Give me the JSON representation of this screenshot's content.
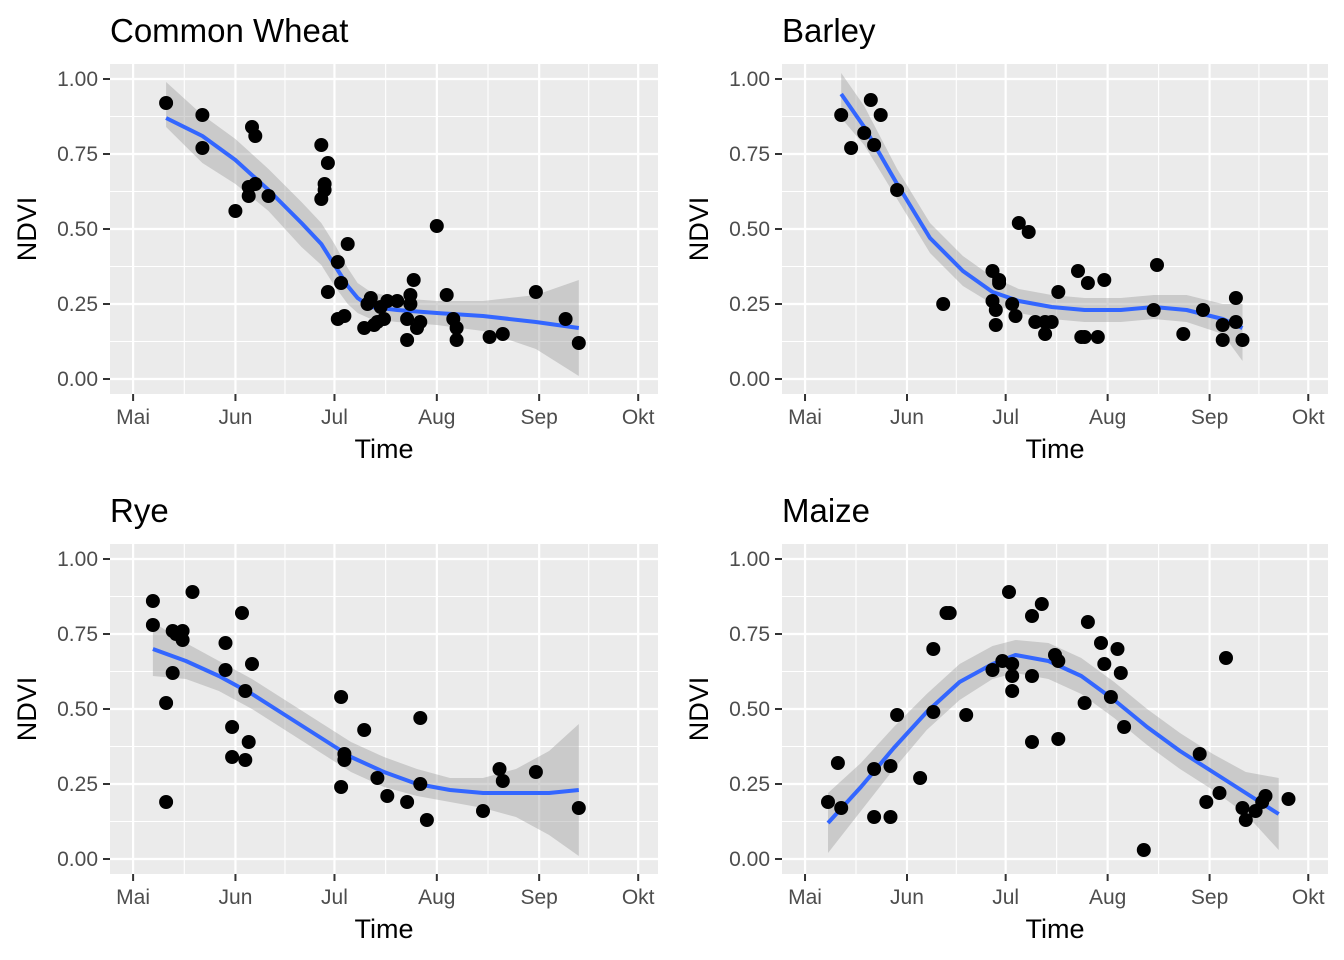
{
  "chart_data": [
    {
      "type": "scatter",
      "title": "Common Wheat",
      "xlabel": "Time",
      "ylabel": "NDVI",
      "x_ticks": [
        "Mai",
        "Jun",
        "Jul",
        "Aug",
        "Sep",
        "Okt"
      ],
      "x_tick_dates": [
        "2021-05-01",
        "2021-06-01",
        "2021-07-01",
        "2021-08-01",
        "2021-09-01",
        "2021-10-01"
      ],
      "xlim": [
        "2021-04-24",
        "2021-10-07"
      ],
      "y_ticks": [
        "0.00",
        "0.25",
        "0.50",
        "0.75",
        "1.00"
      ],
      "ylim": [
        -0.05,
        1.05
      ],
      "grid": true,
      "points": [
        {
          "x": "2021-05-11",
          "y": 0.92
        },
        {
          "x": "2021-05-22",
          "y": 0.88
        },
        {
          "x": "2021-05-22",
          "y": 0.77
        },
        {
          "x": "2021-06-01",
          "y": 0.56
        },
        {
          "x": "2021-06-05",
          "y": 0.64
        },
        {
          "x": "2021-06-05",
          "y": 0.61
        },
        {
          "x": "2021-06-06",
          "y": 0.84
        },
        {
          "x": "2021-06-07",
          "y": 0.81
        },
        {
          "x": "2021-06-07",
          "y": 0.65
        },
        {
          "x": "2021-06-11",
          "y": 0.61
        },
        {
          "x": "2021-06-27",
          "y": 0.78
        },
        {
          "x": "2021-06-27",
          "y": 0.6
        },
        {
          "x": "2021-06-28",
          "y": 0.65
        },
        {
          "x": "2021-06-28",
          "y": 0.63
        },
        {
          "x": "2021-06-29",
          "y": 0.72
        },
        {
          "x": "2021-06-29",
          "y": 0.29
        },
        {
          "x": "2021-07-02",
          "y": 0.39
        },
        {
          "x": "2021-07-02",
          "y": 0.2
        },
        {
          "x": "2021-07-03",
          "y": 0.32
        },
        {
          "x": "2021-07-04",
          "y": 0.21
        },
        {
          "x": "2021-07-05",
          "y": 0.45
        },
        {
          "x": "2021-07-10",
          "y": 0.17
        },
        {
          "x": "2021-07-11",
          "y": 0.25
        },
        {
          "x": "2021-07-12",
          "y": 0.27
        },
        {
          "x": "2021-07-13",
          "y": 0.18
        },
        {
          "x": "2021-07-14",
          "y": 0.19
        },
        {
          "x": "2021-07-15",
          "y": 0.24
        },
        {
          "x": "2021-07-16",
          "y": 0.2
        },
        {
          "x": "2021-07-17",
          "y": 0.26
        },
        {
          "x": "2021-07-20",
          "y": 0.26
        },
        {
          "x": "2021-07-23",
          "y": 0.2
        },
        {
          "x": "2021-07-23",
          "y": 0.13
        },
        {
          "x": "2021-07-24",
          "y": 0.25
        },
        {
          "x": "2021-07-24",
          "y": 0.28
        },
        {
          "x": "2021-07-25",
          "y": 0.33
        },
        {
          "x": "2021-07-26",
          "y": 0.17
        },
        {
          "x": "2021-07-27",
          "y": 0.19
        },
        {
          "x": "2021-08-01",
          "y": 0.51
        },
        {
          "x": "2021-08-04",
          "y": 0.28
        },
        {
          "x": "2021-08-06",
          "y": 0.2
        },
        {
          "x": "2021-08-07",
          "y": 0.17
        },
        {
          "x": "2021-08-07",
          "y": 0.13
        },
        {
          "x": "2021-08-17",
          "y": 0.14
        },
        {
          "x": "2021-08-21",
          "y": 0.15
        },
        {
          "x": "2021-08-31",
          "y": 0.29
        },
        {
          "x": "2021-09-09",
          "y": 0.2
        },
        {
          "x": "2021-09-13",
          "y": 0.12
        }
      ],
      "smooth": {
        "x": [
          "2021-05-11",
          "2021-05-22",
          "2021-06-01",
          "2021-06-11",
          "2021-06-21",
          "2021-06-27",
          "2021-07-01",
          "2021-07-05",
          "2021-07-08",
          "2021-07-12",
          "2021-07-20",
          "2021-08-01",
          "2021-08-15",
          "2021-08-31",
          "2021-09-13"
        ],
        "y": [
          0.87,
          0.81,
          0.73,
          0.63,
          0.52,
          0.45,
          0.38,
          0.31,
          0.27,
          0.24,
          0.23,
          0.22,
          0.21,
          0.19,
          0.17
        ],
        "lower": [
          0.84,
          0.72,
          0.65,
          0.56,
          0.44,
          0.38,
          0.31,
          0.25,
          0.22,
          0.2,
          0.19,
          0.18,
          0.16,
          0.1,
          0.01
        ],
        "upper": [
          0.99,
          0.88,
          0.8,
          0.7,
          0.59,
          0.52,
          0.45,
          0.37,
          0.32,
          0.29,
          0.27,
          0.26,
          0.26,
          0.28,
          0.33
        ]
      }
    },
    {
      "type": "scatter",
      "title": "Barley",
      "xlabel": "Time",
      "ylabel": "NDVI",
      "x_ticks": [
        "Mai",
        "Jun",
        "Jul",
        "Aug",
        "Sep",
        "Okt"
      ],
      "x_tick_dates": [
        "2021-05-01",
        "2021-06-01",
        "2021-07-01",
        "2021-08-01",
        "2021-09-01",
        "2021-10-01"
      ],
      "xlim": [
        "2021-04-24",
        "2021-10-07"
      ],
      "y_ticks": [
        "0.00",
        "0.25",
        "0.50",
        "0.75",
        "1.00"
      ],
      "ylim": [
        -0.05,
        1.05
      ],
      "grid": true,
      "points": [
        {
          "x": "2021-05-12",
          "y": 0.88
        },
        {
          "x": "2021-05-15",
          "y": 0.77
        },
        {
          "x": "2021-05-19",
          "y": 0.82
        },
        {
          "x": "2021-05-21",
          "y": 0.93
        },
        {
          "x": "2021-05-22",
          "y": 0.78
        },
        {
          "x": "2021-05-24",
          "y": 0.88
        },
        {
          "x": "2021-05-29",
          "y": 0.63
        },
        {
          "x": "2021-06-12",
          "y": 0.25
        },
        {
          "x": "2021-06-27",
          "y": 0.36
        },
        {
          "x": "2021-06-27",
          "y": 0.26
        },
        {
          "x": "2021-06-28",
          "y": 0.23
        },
        {
          "x": "2021-06-28",
          "y": 0.18
        },
        {
          "x": "2021-06-29",
          "y": 0.32
        },
        {
          "x": "2021-06-29",
          "y": 0.33
        },
        {
          "x": "2021-07-03",
          "y": 0.25
        },
        {
          "x": "2021-07-04",
          "y": 0.21
        },
        {
          "x": "2021-07-05",
          "y": 0.52
        },
        {
          "x": "2021-07-08",
          "y": 0.49
        },
        {
          "x": "2021-07-10",
          "y": 0.19
        },
        {
          "x": "2021-07-13",
          "y": 0.19
        },
        {
          "x": "2021-07-13",
          "y": 0.15
        },
        {
          "x": "2021-07-15",
          "y": 0.19
        },
        {
          "x": "2021-07-17",
          "y": 0.29
        },
        {
          "x": "2021-07-23",
          "y": 0.36
        },
        {
          "x": "2021-07-24",
          "y": 0.14
        },
        {
          "x": "2021-07-25",
          "y": 0.14
        },
        {
          "x": "2021-07-26",
          "y": 0.32
        },
        {
          "x": "2021-07-29",
          "y": 0.14
        },
        {
          "x": "2021-07-31",
          "y": 0.33
        },
        {
          "x": "2021-08-15",
          "y": 0.23
        },
        {
          "x": "2021-08-16",
          "y": 0.38
        },
        {
          "x": "2021-08-24",
          "y": 0.15
        },
        {
          "x": "2021-08-30",
          "y": 0.23
        },
        {
          "x": "2021-09-05",
          "y": 0.18
        },
        {
          "x": "2021-09-05",
          "y": 0.13
        },
        {
          "x": "2021-09-09",
          "y": 0.27
        },
        {
          "x": "2021-09-09",
          "y": 0.19
        },
        {
          "x": "2021-09-11",
          "y": 0.13
        }
      ],
      "smooth": {
        "x": [
          "2021-05-12",
          "2021-05-19",
          "2021-05-29",
          "2021-06-08",
          "2021-06-18",
          "2021-06-27",
          "2021-07-05",
          "2021-07-15",
          "2021-07-25",
          "2021-08-05",
          "2021-08-15",
          "2021-08-25",
          "2021-09-05",
          "2021-09-11"
        ],
        "y": [
          0.95,
          0.84,
          0.65,
          0.47,
          0.36,
          0.29,
          0.26,
          0.24,
          0.23,
          0.23,
          0.24,
          0.23,
          0.2,
          0.17
        ],
        "lower": [
          0.87,
          0.78,
          0.6,
          0.42,
          0.31,
          0.25,
          0.22,
          0.2,
          0.19,
          0.19,
          0.2,
          0.19,
          0.15,
          0.06
        ],
        "upper": [
          1.02,
          0.91,
          0.7,
          0.52,
          0.41,
          0.34,
          0.3,
          0.28,
          0.27,
          0.27,
          0.28,
          0.28,
          0.25,
          0.25
        ]
      }
    },
    {
      "type": "scatter",
      "title": "Rye",
      "xlabel": "Time",
      "ylabel": "NDVI",
      "x_ticks": [
        "Mai",
        "Jun",
        "Jul",
        "Aug",
        "Sep",
        "Okt"
      ],
      "x_tick_dates": [
        "2021-05-01",
        "2021-06-01",
        "2021-07-01",
        "2021-08-01",
        "2021-09-01",
        "2021-10-01"
      ],
      "xlim": [
        "2021-04-24",
        "2021-10-07"
      ],
      "y_ticks": [
        "0.00",
        "0.25",
        "0.50",
        "0.75",
        "1.00"
      ],
      "ylim": [
        -0.05,
        1.05
      ],
      "grid": true,
      "points": [
        {
          "x": "2021-05-07",
          "y": 0.86
        },
        {
          "x": "2021-05-07",
          "y": 0.78
        },
        {
          "x": "2021-05-11",
          "y": 0.52
        },
        {
          "x": "2021-05-11",
          "y": 0.19
        },
        {
          "x": "2021-05-13",
          "y": 0.76
        },
        {
          "x": "2021-05-13",
          "y": 0.62
        },
        {
          "x": "2021-05-14",
          "y": 0.75
        },
        {
          "x": "2021-05-16",
          "y": 0.76
        },
        {
          "x": "2021-05-16",
          "y": 0.73
        },
        {
          "x": "2021-05-19",
          "y": 0.89
        },
        {
          "x": "2021-05-29",
          "y": 0.72
        },
        {
          "x": "2021-05-29",
          "y": 0.63
        },
        {
          "x": "2021-05-31",
          "y": 0.44
        },
        {
          "x": "2021-05-31",
          "y": 0.34
        },
        {
          "x": "2021-06-03",
          "y": 0.82
        },
        {
          "x": "2021-06-04",
          "y": 0.56
        },
        {
          "x": "2021-06-04",
          "y": 0.33
        },
        {
          "x": "2021-06-05",
          "y": 0.39
        },
        {
          "x": "2021-06-06",
          "y": 0.65
        },
        {
          "x": "2021-07-03",
          "y": 0.54
        },
        {
          "x": "2021-07-03",
          "y": 0.24
        },
        {
          "x": "2021-07-04",
          "y": 0.35
        },
        {
          "x": "2021-07-04",
          "y": 0.33
        },
        {
          "x": "2021-07-10",
          "y": 0.43
        },
        {
          "x": "2021-07-14",
          "y": 0.27
        },
        {
          "x": "2021-07-17",
          "y": 0.21
        },
        {
          "x": "2021-07-23",
          "y": 0.19
        },
        {
          "x": "2021-07-27",
          "y": 0.47
        },
        {
          "x": "2021-07-27",
          "y": 0.25
        },
        {
          "x": "2021-07-29",
          "y": 0.13
        },
        {
          "x": "2021-08-15",
          "y": 0.16
        },
        {
          "x": "2021-08-20",
          "y": 0.3
        },
        {
          "x": "2021-08-21",
          "y": 0.26
        },
        {
          "x": "2021-08-31",
          "y": 0.29
        },
        {
          "x": "2021-09-13",
          "y": 0.17
        }
      ],
      "smooth": {
        "x": [
          "2021-05-07",
          "2021-05-17",
          "2021-05-27",
          "2021-06-06",
          "2021-06-16",
          "2021-06-26",
          "2021-07-06",
          "2021-07-16",
          "2021-07-26",
          "2021-08-05",
          "2021-08-15",
          "2021-08-25",
          "2021-09-04",
          "2021-09-13"
        ],
        "y": [
          0.7,
          0.66,
          0.61,
          0.55,
          0.48,
          0.41,
          0.34,
          0.29,
          0.25,
          0.23,
          0.22,
          0.22,
          0.22,
          0.23
        ],
        "lower": [
          0.61,
          0.6,
          0.56,
          0.5,
          0.43,
          0.36,
          0.29,
          0.24,
          0.21,
          0.19,
          0.17,
          0.14,
          0.08,
          0.01
        ],
        "upper": [
          0.79,
          0.72,
          0.66,
          0.6,
          0.53,
          0.46,
          0.39,
          0.34,
          0.3,
          0.27,
          0.27,
          0.3,
          0.36,
          0.45
        ]
      }
    },
    {
      "type": "scatter",
      "title": "Maize",
      "xlabel": "Time",
      "ylabel": "NDVI",
      "x_ticks": [
        "Mai",
        "Jun",
        "Jul",
        "Aug",
        "Sep",
        "Okt"
      ],
      "x_tick_dates": [
        "2021-05-01",
        "2021-06-01",
        "2021-07-01",
        "2021-08-01",
        "2021-09-01",
        "2021-10-01"
      ],
      "xlim": [
        "2021-04-24",
        "2021-10-07"
      ],
      "y_ticks": [
        "0.00",
        "0.25",
        "0.50",
        "0.75",
        "1.00"
      ],
      "ylim": [
        -0.05,
        1.05
      ],
      "grid": true,
      "points": [
        {
          "x": "2021-05-08",
          "y": 0.19
        },
        {
          "x": "2021-05-11",
          "y": 0.32
        },
        {
          "x": "2021-05-12",
          "y": 0.17
        },
        {
          "x": "2021-05-22",
          "y": 0.3
        },
        {
          "x": "2021-05-22",
          "y": 0.14
        },
        {
          "x": "2021-05-27",
          "y": 0.31
        },
        {
          "x": "2021-05-27",
          "y": 0.14
        },
        {
          "x": "2021-05-29",
          "y": 0.48
        },
        {
          "x": "2021-06-05",
          "y": 0.27
        },
        {
          "x": "2021-06-09",
          "y": 0.7
        },
        {
          "x": "2021-06-09",
          "y": 0.49
        },
        {
          "x": "2021-06-13",
          "y": 0.82
        },
        {
          "x": "2021-06-14",
          "y": 0.82
        },
        {
          "x": "2021-06-19",
          "y": 0.48
        },
        {
          "x": "2021-06-27",
          "y": 0.63
        },
        {
          "x": "2021-06-30",
          "y": 0.66
        },
        {
          "x": "2021-07-02",
          "y": 0.89
        },
        {
          "x": "2021-07-03",
          "y": 0.65
        },
        {
          "x": "2021-07-03",
          "y": 0.61
        },
        {
          "x": "2021-07-03",
          "y": 0.56
        },
        {
          "x": "2021-07-09",
          "y": 0.81
        },
        {
          "x": "2021-07-09",
          "y": 0.61
        },
        {
          "x": "2021-07-09",
          "y": 0.39
        },
        {
          "x": "2021-07-12",
          "y": 0.85
        },
        {
          "x": "2021-07-16",
          "y": 0.68
        },
        {
          "x": "2021-07-17",
          "y": 0.66
        },
        {
          "x": "2021-07-17",
          "y": 0.4
        },
        {
          "x": "2021-07-25",
          "y": 0.52
        },
        {
          "x": "2021-07-26",
          "y": 0.79
        },
        {
          "x": "2021-07-30",
          "y": 0.72
        },
        {
          "x": "2021-07-31",
          "y": 0.65
        },
        {
          "x": "2021-08-02",
          "y": 0.54
        },
        {
          "x": "2021-08-04",
          "y": 0.7
        },
        {
          "x": "2021-08-05",
          "y": 0.62
        },
        {
          "x": "2021-08-06",
          "y": 0.44
        },
        {
          "x": "2021-08-12",
          "y": 0.03
        },
        {
          "x": "2021-08-29",
          "y": 0.35
        },
        {
          "x": "2021-08-31",
          "y": 0.19
        },
        {
          "x": "2021-09-04",
          "y": 0.22
        },
        {
          "x": "2021-09-06",
          "y": 0.67
        },
        {
          "x": "2021-09-11",
          "y": 0.17
        },
        {
          "x": "2021-09-12",
          "y": 0.13
        },
        {
          "x": "2021-09-15",
          "y": 0.16
        },
        {
          "x": "2021-09-17",
          "y": 0.19
        },
        {
          "x": "2021-09-18",
          "y": 0.21
        },
        {
          "x": "2021-09-25",
          "y": 0.2
        }
      ],
      "smooth": {
        "x": [
          "2021-05-08",
          "2021-05-18",
          "2021-05-28",
          "2021-06-07",
          "2021-06-17",
          "2021-06-27",
          "2021-07-04",
          "2021-07-14",
          "2021-07-24",
          "2021-08-03",
          "2021-08-13",
          "2021-08-23",
          "2021-09-02",
          "2021-09-12",
          "2021-09-22"
        ],
        "y": [
          0.12,
          0.24,
          0.37,
          0.49,
          0.59,
          0.65,
          0.68,
          0.66,
          0.61,
          0.53,
          0.44,
          0.36,
          0.29,
          0.22,
          0.15
        ],
        "lower": [
          0.02,
          0.16,
          0.3,
          0.43,
          0.53,
          0.6,
          0.62,
          0.6,
          0.55,
          0.47,
          0.38,
          0.3,
          0.23,
          0.15,
          0.03
        ],
        "upper": [
          0.22,
          0.32,
          0.44,
          0.55,
          0.65,
          0.71,
          0.73,
          0.72,
          0.67,
          0.59,
          0.5,
          0.42,
          0.35,
          0.29,
          0.27
        ]
      }
    }
  ],
  "colors": {
    "panel_background": "#ebebeb",
    "grid": "#ffffff",
    "points": "#000000",
    "smooth_line": "#3366ff",
    "ribbon": "#999999",
    "tick_text": "#4d4d4d",
    "tick_mark": "#333333"
  }
}
